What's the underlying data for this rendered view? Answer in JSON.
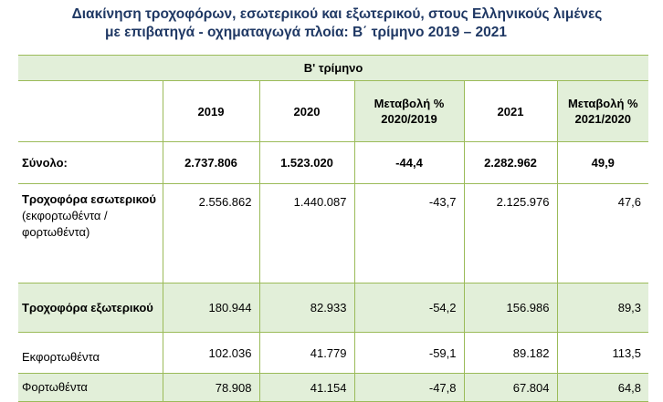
{
  "title": {
    "line1": "Διακίνηση τροχοφόρων, εσωτερικού και εξωτερικού, στους Ελληνικούς λιμένες",
    "line2": "με επιβατηγά - οχηματαγωγά πλοία: Β΄ τρίμηνο 2019 – 2021"
  },
  "table": {
    "period": "Β' τρίμηνο",
    "headers": [
      "",
      "2019",
      "2020",
      "Μεταβολή %\n2020/2019",
      "2021",
      "Μεταβολή %\n2021/2020"
    ],
    "rows": [
      {
        "label": "Σύνολο:",
        "sublabel": "",
        "values": [
          "2.737.806",
          "1.523.020",
          "-44,4",
          "2.282.962",
          "49,9"
        ]
      },
      {
        "label": "Τροχοφόρα εσωτερικού",
        "sublabel": "(εκφορτωθέντα / φορτωθέντα)",
        "values": [
          "2.556.862",
          "1.440.087",
          "-43,7",
          "2.125.976",
          "47,6"
        ]
      },
      {
        "label": "Τροχοφόρα εξωτερικού",
        "sublabel": "",
        "values": [
          "180.944",
          "82.933",
          "-54,2",
          "156.986",
          "89,3"
        ]
      },
      {
        "label": "Εκφορτωθέντα",
        "sublabel": "",
        "values": [
          "102.036",
          "41.779",
          "-59,1",
          "89.182",
          "113,5"
        ]
      },
      {
        "label": "Φορτωθέντα",
        "sublabel": "",
        "values": [
          "78.908",
          "41.154",
          "-47,8",
          "67.804",
          "64,8"
        ]
      }
    ]
  },
  "colors": {
    "title": "#1f3864",
    "shade": "#e2efd9",
    "rule": "#9bbb59"
  }
}
